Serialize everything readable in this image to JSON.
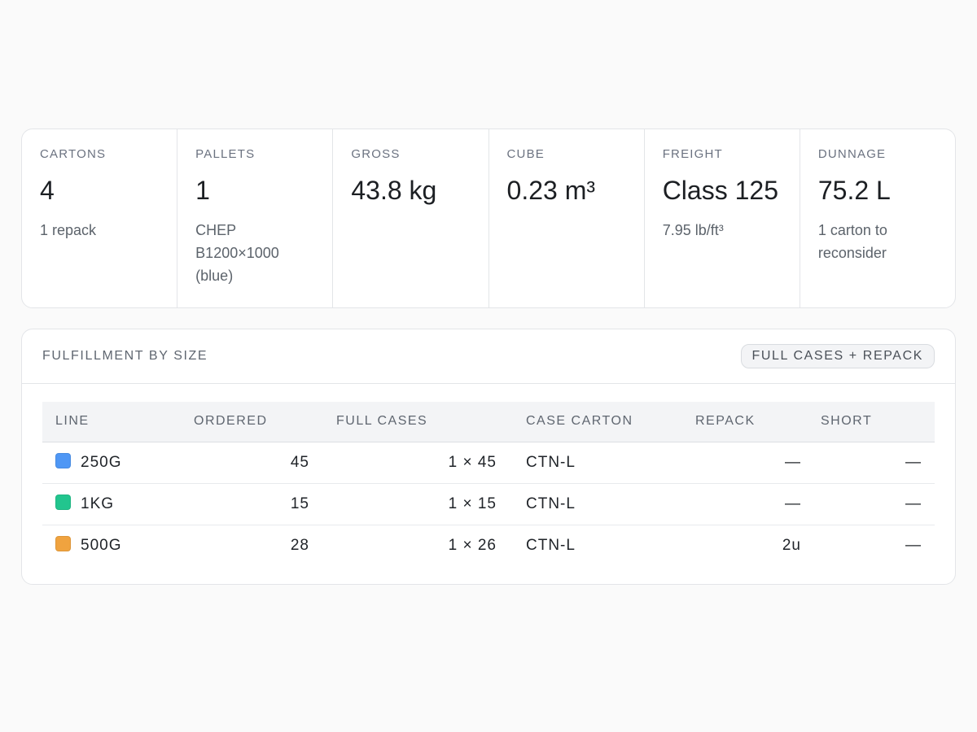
{
  "summary": {
    "cartons": {
      "label": "CARTONS",
      "value": "4",
      "sub": "1 repack"
    },
    "pallets": {
      "label": "PALLETS",
      "value": "1",
      "sub": "CHEP B1200×1000 (blue)"
    },
    "gross": {
      "label": "GROSS",
      "value": "43.8 kg",
      "sub": ""
    },
    "cube": {
      "label": "CUBE",
      "value": "0.23 m³",
      "sub": ""
    },
    "freight": {
      "label": "FREIGHT",
      "value": "Class 125",
      "sub": "7.95 lb/ft³"
    },
    "dunnage": {
      "label": "DUNNAGE",
      "value": "75.2 L",
      "sub": "1 carton to reconsider"
    }
  },
  "fulfillment": {
    "title": "FULFILLMENT BY SIZE",
    "mode_badge": "FULL CASES + REPACK",
    "columns": [
      "LINE",
      "ORDERED",
      "FULL CASES",
      "CASE CARTON",
      "REPACK",
      "SHORT"
    ],
    "rows": [
      {
        "line": "250G",
        "color": "#4f97f5",
        "ordered": "45",
        "full_cases": "1 × 45",
        "case_carton": "CTN-L",
        "repack": "—",
        "short": "—"
      },
      {
        "line": "1KG",
        "color": "#22c58e",
        "ordered": "15",
        "full_cases": "1 × 15",
        "case_carton": "CTN-L",
        "repack": "—",
        "short": "—"
      },
      {
        "line": "500G",
        "color": "#f0a33f",
        "ordered": "28",
        "full_cases": "1 × 26",
        "case_carton": "CTN-L",
        "repack": "2u",
        "short": "—"
      }
    ]
  }
}
